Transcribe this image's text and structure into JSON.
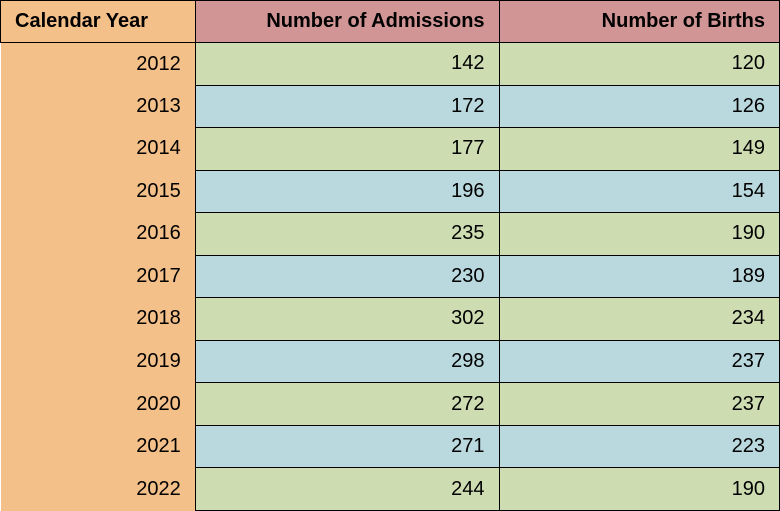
{
  "table": {
    "type": "table",
    "columns": [
      "Calendar Year",
      "Number of Admissions",
      "Number of Births"
    ],
    "rows": [
      [
        "2012",
        "142",
        "120"
      ],
      [
        "2013",
        "172",
        "126"
      ],
      [
        "2014",
        "177",
        "149"
      ],
      [
        "2015",
        "196",
        "154"
      ],
      [
        "2016",
        "235",
        "190"
      ],
      [
        "2017",
        "230",
        "189"
      ],
      [
        "2018",
        "302",
        "234"
      ],
      [
        "2019",
        "298",
        "237"
      ],
      [
        "2020",
        "272",
        "237"
      ],
      [
        "2021",
        "271",
        "223"
      ],
      [
        "2022",
        "244",
        "190"
      ]
    ],
    "header_year_bg": "#f4c08a",
    "header_data_bg": "#d19595",
    "year_col_bg": "#f4c08a",
    "row_color_a": "#cedcb2",
    "row_color_b": "#bad9df",
    "border_color": "#000000",
    "font_size": 20,
    "font_family": "Arial, sans-serif",
    "col_widths": [
      "25%",
      "39%",
      "36%"
    ]
  }
}
